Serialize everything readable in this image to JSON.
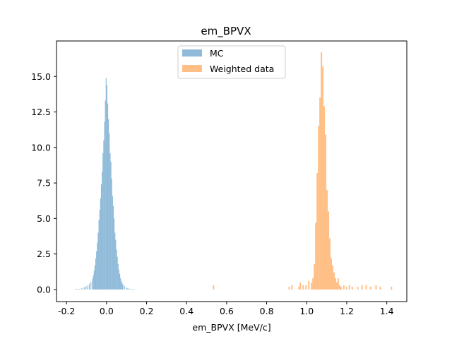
{
  "chart_data": {
    "type": "bar",
    "title": "em_BPVX",
    "xlabel": "em_BPVX [MeV/c]",
    "ylabel": "",
    "xlim": [
      -0.25,
      1.5
    ],
    "ylim": [
      -0.85,
      17.5
    ],
    "xticks": [
      "-0.2",
      "0.0",
      "0.2",
      "0.4",
      "0.6",
      "0.8",
      "1.0",
      "1.2",
      "1.4"
    ],
    "yticks": [
      "0.0",
      "2.5",
      "5.0",
      "7.5",
      "10.0",
      "12.5",
      "15.0"
    ],
    "grid": false,
    "legend": {
      "placement": "upper center",
      "entries": [
        "MC",
        "Weighted data"
      ]
    },
    "series": [
      {
        "name": "MC",
        "color": "#1f77b4",
        "alpha": 0.5,
        "bin_width": 0.004,
        "bins": [
          [
            -0.16,
            0.03
          ],
          [
            -0.152,
            0.05
          ],
          [
            -0.144,
            0.05
          ],
          [
            -0.136,
            0.05
          ],
          [
            -0.128,
            0.08
          ],
          [
            -0.12,
            0.12
          ],
          [
            -0.112,
            0.18
          ],
          [
            -0.104,
            0.22
          ],
          [
            -0.096,
            0.28
          ],
          [
            -0.088,
            0.4
          ],
          [
            -0.08,
            0.55
          ],
          [
            -0.072,
            0.75
          ],
          [
            -0.068,
            1.0
          ],
          [
            -0.064,
            1.3
          ],
          [
            -0.06,
            1.7
          ],
          [
            -0.056,
            2.2
          ],
          [
            -0.052,
            2.7
          ],
          [
            -0.048,
            3.3
          ],
          [
            -0.044,
            4.0
          ],
          [
            -0.04,
            4.9
          ],
          [
            -0.036,
            5.6
          ],
          [
            -0.032,
            6.4
          ],
          [
            -0.028,
            7.4
          ],
          [
            -0.024,
            8.3
          ],
          [
            -0.02,
            9.6
          ],
          [
            -0.016,
            10.5
          ],
          [
            -0.012,
            11.8
          ],
          [
            -0.008,
            13.3
          ],
          [
            -0.004,
            14.9
          ],
          [
            0.0,
            14.4
          ],
          [
            0.004,
            13.1
          ],
          [
            0.008,
            12.0
          ],
          [
            0.012,
            11.0
          ],
          [
            0.016,
            9.6
          ],
          [
            0.02,
            9.0
          ],
          [
            0.024,
            7.8
          ],
          [
            0.028,
            6.6
          ],
          [
            0.032,
            5.9
          ],
          [
            0.036,
            5.0
          ],
          [
            0.04,
            4.0
          ],
          [
            0.044,
            3.5
          ],
          [
            0.048,
            2.8
          ],
          [
            0.052,
            2.3
          ],
          [
            0.056,
            1.8
          ],
          [
            0.06,
            1.4
          ],
          [
            0.064,
            1.1
          ],
          [
            0.068,
            0.8
          ],
          [
            0.072,
            0.6
          ],
          [
            0.076,
            0.45
          ],
          [
            0.08,
            0.35
          ],
          [
            0.088,
            0.25
          ],
          [
            0.096,
            0.15
          ],
          [
            0.104,
            0.1
          ],
          [
            0.112,
            0.06
          ],
          [
            0.12,
            0.05
          ],
          [
            0.128,
            0.04
          ],
          [
            0.136,
            0.03
          ]
        ]
      },
      {
        "name": "Weighted data",
        "color": "#ff7f0e",
        "alpha": 0.5,
        "bin_width": 0.007,
        "bins": [
          [
            0.531,
            0.3
          ],
          [
            0.909,
            0.2
          ],
          [
            0.923,
            0.3
          ],
          [
            0.958,
            0.2
          ],
          [
            0.965,
            0.5
          ],
          [
            0.979,
            0.3
          ],
          [
            0.993,
            0.3
          ],
          [
            1.007,
            0.6
          ],
          [
            1.021,
            0.5
          ],
          [
            1.028,
            0.8
          ],
          [
            1.035,
            1.8
          ],
          [
            1.042,
            4.7
          ],
          [
            1.049,
            8.2
          ],
          [
            1.056,
            11.5
          ],
          [
            1.063,
            13.5
          ],
          [
            1.07,
            16.7
          ],
          [
            1.077,
            15.7
          ],
          [
            1.084,
            12.9
          ],
          [
            1.091,
            10.9
          ],
          [
            1.098,
            7.0
          ],
          [
            1.105,
            5.5
          ],
          [
            1.112,
            3.6
          ],
          [
            1.119,
            2.2
          ],
          [
            1.126,
            1.7
          ],
          [
            1.133,
            1.2
          ],
          [
            1.14,
            0.8
          ],
          [
            1.147,
            0.5
          ],
          [
            1.154,
            0.8
          ],
          [
            1.161,
            0.3
          ],
          [
            1.168,
            0.2
          ],
          [
            1.182,
            0.3
          ],
          [
            1.196,
            0.2
          ],
          [
            1.21,
            0.3
          ],
          [
            1.224,
            0.2
          ],
          [
            1.252,
            0.2
          ],
          [
            1.273,
            0.3
          ],
          [
            1.294,
            0.3
          ],
          [
            1.315,
            0.2
          ],
          [
            1.343,
            0.3
          ],
          [
            1.364,
            0.2
          ],
          [
            1.42,
            0.2
          ]
        ]
      }
    ]
  }
}
